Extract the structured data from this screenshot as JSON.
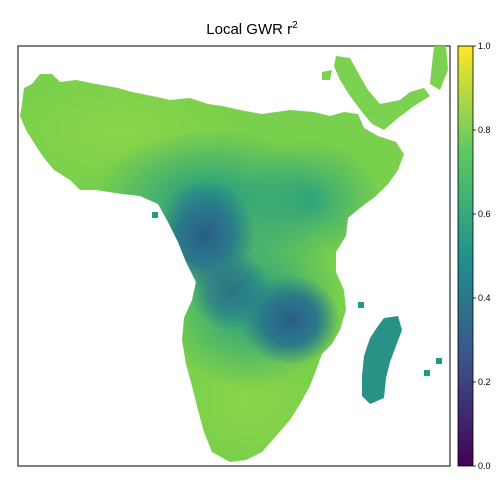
{
  "title": {
    "text": "Local  GWR r",
    "superscript": "2"
  },
  "colorbar": {
    "scale": "viridis",
    "range": [
      0.0,
      1.0
    ],
    "ticks": [
      "0.0",
      "0.2",
      "0.4",
      "0.6",
      "0.8",
      "1.0"
    ],
    "colors": [
      "#440154",
      "#3b528b",
      "#21918c",
      "#5ec962",
      "#fde725"
    ]
  },
  "map": {
    "region": "Africa",
    "variable": "local r-squared",
    "pattern": "high (0.7-0.8) in north and far south, lowest (0.35-0.45) in west-central Africa, moderate (0.5-0.6) on Madagascar"
  }
}
